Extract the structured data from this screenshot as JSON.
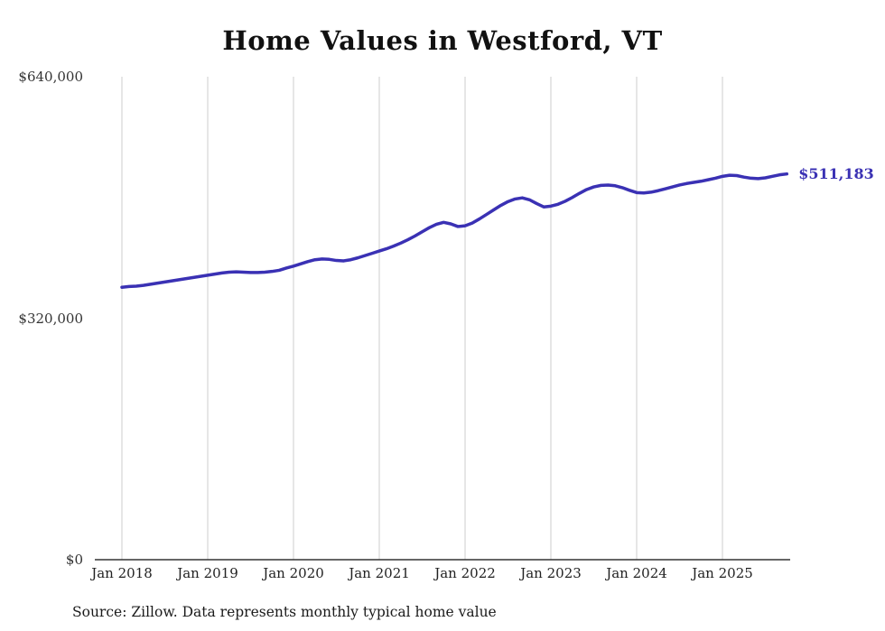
{
  "chart": {
    "title": "Home Values in Westford, VT",
    "source": "Source: Zillow. Data represents monthly typical home value",
    "value_label": "$511,183",
    "y_ticks": [
      {
        "label": "$0",
        "value": 0
      },
      {
        "label": "$320,000",
        "value": 320000
      },
      {
        "label": "$640,000",
        "value": 640000
      }
    ],
    "x_ticks": [
      {
        "label": "Jan 2018"
      },
      {
        "label": "Jan 2019"
      },
      {
        "label": "Jan 2020"
      },
      {
        "label": "Jan 2021"
      },
      {
        "label": "Jan 2022"
      },
      {
        "label": "Jan 2023"
      },
      {
        "label": "Jan 2024"
      },
      {
        "label": "Jan 2025"
      }
    ],
    "colors": {
      "line": "#3a31b4",
      "grid": "#cccccc",
      "axis": "#333333",
      "text": "#222222",
      "value_label": "#3a31b4"
    }
  },
  "chart_data": {
    "type": "line",
    "title": "Home Values in Westford, VT",
    "xlabel": "",
    "ylabel": "",
    "ylim": [
      0,
      640000
    ],
    "grid": "vertical-yearly",
    "legend_position": "none",
    "end_value": 511183,
    "end_label": "$511,183",
    "x": [
      "2018-01",
      "2018-02",
      "2018-03",
      "2018-04",
      "2018-05",
      "2018-06",
      "2018-07",
      "2018-08",
      "2018-09",
      "2018-10",
      "2018-11",
      "2018-12",
      "2019-01",
      "2019-02",
      "2019-03",
      "2019-04",
      "2019-05",
      "2019-06",
      "2019-07",
      "2019-08",
      "2019-09",
      "2019-10",
      "2019-11",
      "2019-12",
      "2020-01",
      "2020-02",
      "2020-03",
      "2020-04",
      "2020-05",
      "2020-06",
      "2020-07",
      "2020-08",
      "2020-09",
      "2020-10",
      "2020-11",
      "2020-12",
      "2021-01",
      "2021-02",
      "2021-03",
      "2021-04",
      "2021-05",
      "2021-06",
      "2021-07",
      "2021-08",
      "2021-09",
      "2021-10",
      "2021-11",
      "2021-12",
      "2022-01",
      "2022-02",
      "2022-03",
      "2022-04",
      "2022-05",
      "2022-06",
      "2022-07",
      "2022-08",
      "2022-09",
      "2022-10",
      "2022-11",
      "2022-12",
      "2023-01",
      "2023-02",
      "2023-03",
      "2023-04",
      "2023-05",
      "2023-06",
      "2023-07",
      "2023-08",
      "2023-09",
      "2023-10",
      "2023-11",
      "2023-12",
      "2024-01",
      "2024-02",
      "2024-03",
      "2024-04",
      "2024-05",
      "2024-06",
      "2024-07",
      "2024-08",
      "2024-09",
      "2024-10",
      "2024-11",
      "2024-12",
      "2025-01",
      "2025-02",
      "2025-03",
      "2025-04",
      "2025-05",
      "2025-06",
      "2025-07",
      "2025-08",
      "2025-09",
      "2025-10"
    ],
    "values": [
      361000,
      362000,
      362500,
      363500,
      365000,
      366500,
      368000,
      369500,
      371000,
      372500,
      374000,
      375500,
      377000,
      378500,
      380000,
      381000,
      381500,
      381000,
      380500,
      380500,
      381000,
      382000,
      383500,
      386500,
      389000,
      392000,
      395000,
      397500,
      398500,
      398000,
      396500,
      396000,
      397500,
      400000,
      403000,
      406000,
      409000,
      412000,
      415500,
      419500,
      424000,
      429000,
      434500,
      440000,
      444500,
      447000,
      445000,
      441500,
      442500,
      446000,
      451500,
      457500,
      463500,
      469500,
      474500,
      478000,
      479500,
      477000,
      472000,
      467500,
      468500,
      471000,
      475000,
      480000,
      485500,
      490500,
      494000,
      496000,
      496500,
      495500,
      493000,
      489500,
      486500,
      486000,
      487000,
      489000,
      491500,
      494000,
      496500,
      498500,
      500000,
      501500,
      503500,
      505500,
      508000,
      509500,
      509000,
      507000,
      505500,
      505000,
      506000,
      508000,
      510000,
      511183
    ]
  }
}
